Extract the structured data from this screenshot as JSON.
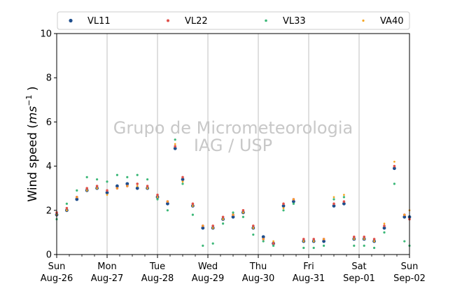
{
  "chart_data": {
    "type": "scatter",
    "title": "",
    "xlabel": "",
    "ylabel": "Wind speed (ms⁻¹ )",
    "ylabel_parts": {
      "prefix": "Wind speed (",
      "unit_main": "ms",
      "unit_exp": "−1",
      "suffix": " )"
    },
    "ylim": [
      0,
      10
    ],
    "y_ticks": [
      0,
      2,
      4,
      6,
      8,
      10
    ],
    "xlim": [
      0,
      7
    ],
    "x_ticks": [
      {
        "x": 0,
        "line1": "Sun",
        "line2": "Aug-26"
      },
      {
        "x": 1,
        "line1": "Mon",
        "line2": "Aug-27"
      },
      {
        "x": 2,
        "line1": "Tue",
        "line2": "Aug-28"
      },
      {
        "x": 3,
        "line1": "Wed",
        "line2": "Aug-29"
      },
      {
        "x": 4,
        "line1": "Thu",
        "line2": "Aug-30"
      },
      {
        "x": 5,
        "line1": "Fri",
        "line2": "Aug-31"
      },
      {
        "x": 6,
        "line1": "Sat",
        "line2": "Sep-01"
      },
      {
        "x": 7,
        "line1": "Sun",
        "line2": "Sep-02"
      }
    ],
    "grid": "vertical",
    "legend_position": "top",
    "watermark": {
      "line1": "Grupo de Micrometeorologia",
      "line2": "IAG / USP"
    },
    "series": [
      {
        "name": "VL11",
        "color": "#1f4e8c",
        "marker_size": 2.4,
        "x": [
          0.0,
          0.2,
          0.4,
          0.6,
          0.8,
          1.0,
          1.2,
          1.4,
          1.6,
          1.8,
          2.0,
          2.2,
          2.35,
          2.5,
          2.7,
          2.9,
          3.1,
          3.3,
          3.5,
          3.7,
          3.9,
          4.1,
          4.3,
          4.5,
          4.7,
          4.9,
          5.1,
          5.3,
          5.5,
          5.7,
          5.9,
          6.1,
          6.3,
          6.5,
          6.7,
          6.9,
          7.0
        ],
        "y": [
          1.8,
          2.0,
          2.5,
          2.9,
          3.0,
          2.8,
          3.1,
          3.2,
          3.0,
          3.0,
          2.6,
          2.3,
          4.8,
          3.4,
          2.2,
          1.2,
          1.2,
          1.6,
          1.7,
          1.9,
          1.2,
          0.8,
          0.5,
          2.2,
          2.4,
          0.6,
          0.6,
          0.6,
          2.2,
          2.3,
          0.7,
          0.7,
          0.6,
          1.2,
          3.9,
          1.7,
          1.7
        ]
      },
      {
        "name": "VL22",
        "color": "#e0504a",
        "marker_size": 1.8,
        "x": [
          0.0,
          0.2,
          0.4,
          0.6,
          0.8,
          1.0,
          1.2,
          1.4,
          1.6,
          1.8,
          2.0,
          2.2,
          2.35,
          2.5,
          2.7,
          2.9,
          3.1,
          3.3,
          3.5,
          3.7,
          3.9,
          4.1,
          4.3,
          4.5,
          4.7,
          4.9,
          5.1,
          5.3,
          5.5,
          5.7,
          5.9,
          6.1,
          6.3,
          6.5,
          6.7,
          6.9,
          7.0
        ],
        "y": [
          1.9,
          2.1,
          2.6,
          3.0,
          3.1,
          2.9,
          3.0,
          3.1,
          3.2,
          3.1,
          2.7,
          2.4,
          4.9,
          3.5,
          2.3,
          1.3,
          1.3,
          1.7,
          1.8,
          2.0,
          1.3,
          0.7,
          0.5,
          2.3,
          2.5,
          0.7,
          0.7,
          0.7,
          2.3,
          2.4,
          0.8,
          0.8,
          0.7,
          1.3,
          4.0,
          1.8,
          1.6
        ]
      },
      {
        "name": "VL33",
        "color": "#3cb878",
        "marker_size": 1.6,
        "x": [
          0.0,
          0.2,
          0.4,
          0.6,
          0.8,
          1.0,
          1.2,
          1.4,
          1.6,
          1.8,
          2.0,
          2.2,
          2.35,
          2.5,
          2.7,
          2.9,
          3.1,
          3.3,
          3.5,
          3.7,
          3.9,
          4.1,
          4.3,
          4.5,
          4.7,
          4.9,
          5.1,
          5.3,
          5.5,
          5.7,
          5.9,
          6.1,
          6.3,
          6.5,
          6.7,
          6.9,
          7.0
        ],
        "y": [
          1.6,
          2.3,
          2.9,
          3.5,
          3.4,
          3.3,
          3.6,
          3.5,
          3.6,
          3.4,
          2.5,
          2.0,
          5.2,
          3.2,
          1.8,
          0.4,
          0.5,
          1.4,
          1.9,
          1.7,
          0.9,
          0.6,
          0.4,
          2.0,
          2.3,
          0.3,
          0.3,
          0.4,
          2.5,
          2.6,
          0.4,
          0.4,
          0.3,
          1.0,
          3.2,
          0.6,
          0.4
        ]
      },
      {
        "name": "VA40",
        "color": "#f5a623",
        "marker_size": 1.4,
        "x": [
          0.0,
          0.2,
          0.4,
          0.6,
          0.8,
          1.0,
          1.2,
          1.4,
          1.6,
          1.8,
          2.0,
          2.2,
          2.35,
          2.5,
          2.7,
          2.9,
          3.1,
          3.3,
          3.5,
          3.7,
          3.9,
          4.1,
          4.3,
          4.5,
          4.7,
          4.9,
          5.1,
          5.3,
          5.5,
          5.7,
          5.9,
          6.1,
          6.3,
          6.5,
          6.7,
          6.9,
          7.0
        ],
        "y": [
          1.8,
          2.0,
          2.6,
          2.9,
          3.0,
          2.7,
          3.0,
          3.1,
          3.1,
          3.0,
          2.6,
          2.4,
          5.0,
          3.3,
          2.2,
          1.3,
          1.2,
          1.6,
          1.8,
          1.9,
          1.2,
          0.7,
          0.6,
          2.1,
          2.5,
          0.6,
          0.6,
          0.7,
          2.6,
          2.7,
          0.7,
          0.7,
          0.6,
          1.4,
          4.2,
          1.8,
          2.0
        ]
      }
    ]
  }
}
